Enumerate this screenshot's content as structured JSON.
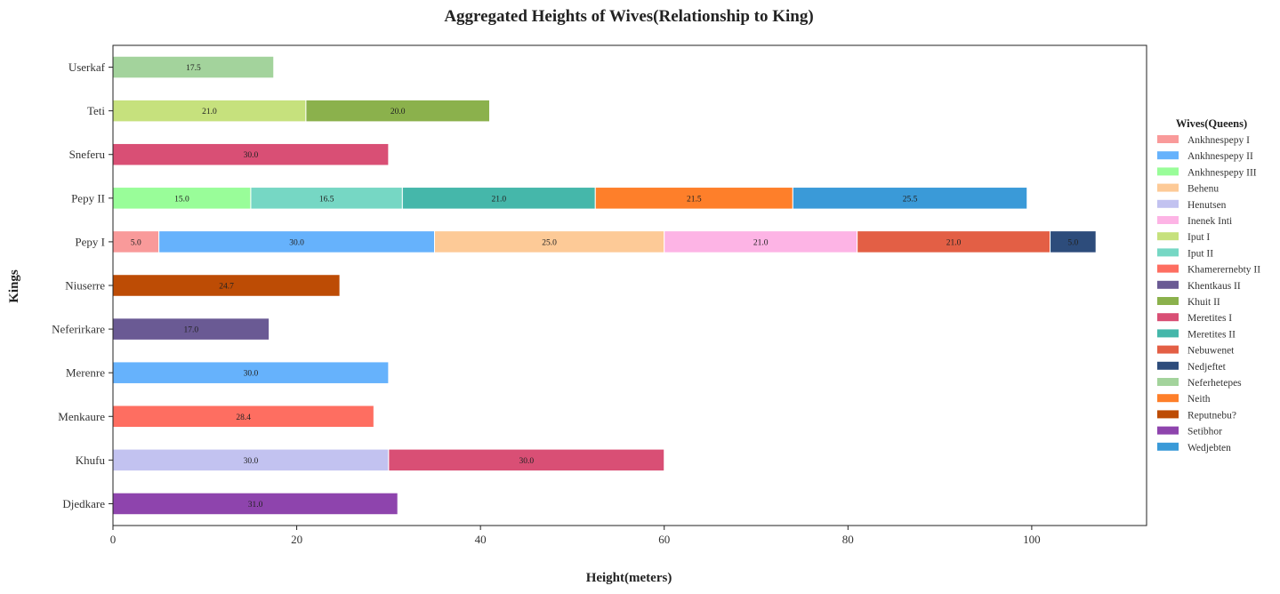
{
  "chart_data": {
    "type": "bar",
    "orientation": "horizontal",
    "stacked": true,
    "title": "Aggregated Heights of Wives(Relationship to King)",
    "xlabel": "Height(meters)",
    "ylabel": "Kings",
    "xlim": [
      0,
      112.5
    ],
    "xticks": [
      0,
      20,
      40,
      60,
      80,
      100
    ],
    "grid": false,
    "legend_title": "Wives(Queens)",
    "legend_position": "right",
    "categories": [
      "Djedkare",
      "Khufu",
      "Menkaure",
      "Merenre",
      "Neferirkare",
      "Niuserre",
      "Pepy I",
      "Pepy II",
      "Sneferu",
      "Teti",
      "Userkaf"
    ],
    "series": [
      {
        "name": "Ankhnespepy I",
        "color": "#f99a9a",
        "values": [
          0,
          0,
          0,
          0,
          0,
          0,
          5.0,
          0,
          0,
          0,
          0
        ]
      },
      {
        "name": "Ankhnespepy II",
        "color": "#66b2fc",
        "values": [
          0,
          0,
          0,
          30.0,
          0,
          0,
          30.0,
          0,
          0,
          0,
          0
        ]
      },
      {
        "name": "Ankhnespepy III",
        "color": "#99fd99",
        "values": [
          0,
          0,
          0,
          0,
          0,
          0,
          0,
          15.0,
          0,
          0,
          0
        ]
      },
      {
        "name": "Behenu",
        "color": "#fdca97",
        "values": [
          0,
          0,
          0,
          0,
          0,
          0,
          25.0,
          0,
          0,
          0,
          0
        ]
      },
      {
        "name": "Henutsen",
        "color": "#c2c2f0",
        "values": [
          0,
          30.0,
          0,
          0,
          0,
          0,
          0,
          0,
          0,
          0,
          0
        ]
      },
      {
        "name": "Inenek Inti",
        "color": "#fdb4e5",
        "values": [
          0,
          0,
          0,
          0,
          0,
          0,
          21.0,
          0,
          0,
          0,
          0
        ]
      },
      {
        "name": "Iput I",
        "color": "#c6e17d",
        "values": [
          0,
          0,
          0,
          0,
          0,
          0,
          0,
          0,
          0,
          21.0,
          0
        ]
      },
      {
        "name": "Iput II",
        "color": "#76d7c4",
        "values": [
          0,
          0,
          0,
          0,
          0,
          0,
          0,
          16.5,
          0,
          0,
          0
        ]
      },
      {
        "name": "Khamerernebty II",
        "color": "#fe6e61",
        "values": [
          0,
          0,
          28.4,
          0,
          0,
          0,
          0,
          0,
          0,
          0,
          0
        ]
      },
      {
        "name": "Khentkaus II",
        "color": "#6a5a94",
        "values": [
          0,
          0,
          0,
          0,
          17.0,
          0,
          0,
          0,
          0,
          0,
          0
        ]
      },
      {
        "name": "Khuit II",
        "color": "#8bb14c",
        "values": [
          0,
          0,
          0,
          0,
          0,
          0,
          0,
          0,
          0,
          20.0,
          0
        ]
      },
      {
        "name": "Meretites I",
        "color": "#d94f75",
        "values": [
          0,
          30.0,
          0,
          0,
          0,
          0,
          0,
          0,
          30.0,
          0,
          0
        ]
      },
      {
        "name": "Meretites II",
        "color": "#45b7aa",
        "values": [
          0,
          0,
          0,
          0,
          0,
          0,
          0,
          21.0,
          0,
          0,
          0
        ]
      },
      {
        "name": "Nebuwenet",
        "color": "#e35f45",
        "values": [
          0,
          0,
          0,
          0,
          0,
          0,
          21.0,
          0,
          0,
          0,
          0
        ]
      },
      {
        "name": "Nedjeftet",
        "color": "#2d4c7b",
        "values": [
          0,
          0,
          0,
          0,
          0,
          0,
          5.0,
          0,
          0,
          0,
          0
        ]
      },
      {
        "name": "Neferhetepes",
        "color": "#a3d39c",
        "values": [
          0,
          0,
          0,
          0,
          0,
          0,
          0,
          0,
          0,
          0,
          17.5
        ]
      },
      {
        "name": "Neith",
        "color": "#fe7f2a",
        "values": [
          0,
          0,
          0,
          0,
          0,
          0,
          0,
          21.5,
          0,
          0,
          0
        ]
      },
      {
        "name": "Reputnebu?",
        "color": "#bd4c05",
        "values": [
          0,
          0,
          0,
          0,
          0,
          24.7,
          0,
          0,
          0,
          0,
          0
        ]
      },
      {
        "name": "Setibhor",
        "color": "#8e44ad",
        "values": [
          31.0,
          0,
          0,
          0,
          0,
          0,
          0,
          0,
          0,
          0,
          0
        ]
      },
      {
        "name": "Wedjebten",
        "color": "#3a9ad8",
        "values": [
          0,
          0,
          0,
          0,
          0,
          0,
          0,
          25.5,
          0,
          0,
          0
        ]
      }
    ]
  }
}
